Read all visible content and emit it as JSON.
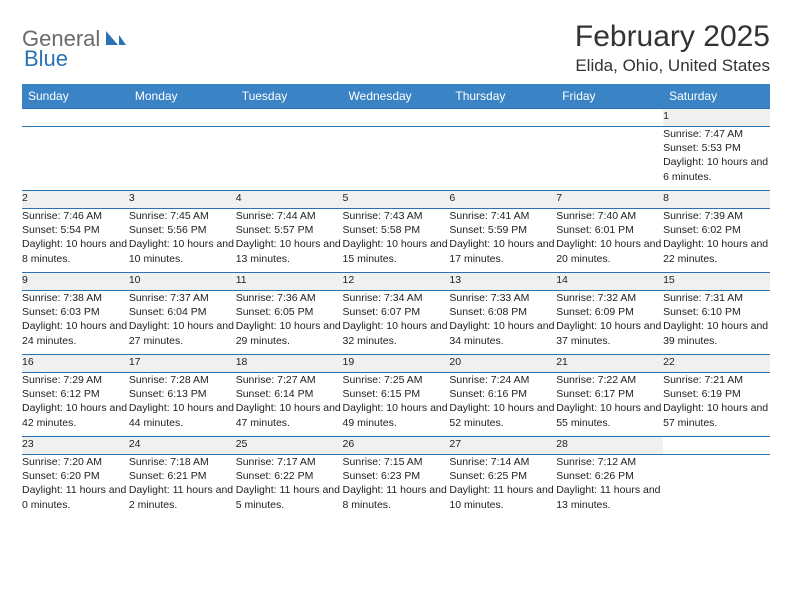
{
  "logo": {
    "part1": "General",
    "part2": "Blue"
  },
  "title": "February 2025",
  "location": "Elida, Ohio, United States",
  "colors": {
    "header_bg": "#3a83c4",
    "border": "#2a72b5",
    "daynum_bg": "#f0f0f0",
    "text": "#222222",
    "logo_gray": "#6b6b6b",
    "logo_blue": "#2a72b5"
  },
  "day_headers": [
    "Sunday",
    "Monday",
    "Tuesday",
    "Wednesday",
    "Thursday",
    "Friday",
    "Saturday"
  ],
  "weeks": [
    [
      {
        "n": "",
        "lines": []
      },
      {
        "n": "",
        "lines": []
      },
      {
        "n": "",
        "lines": []
      },
      {
        "n": "",
        "lines": []
      },
      {
        "n": "",
        "lines": []
      },
      {
        "n": "",
        "lines": []
      },
      {
        "n": "1",
        "lines": [
          "Sunrise: 7:47 AM",
          "Sunset: 5:53 PM",
          "Daylight: 10 hours and 6 minutes."
        ]
      }
    ],
    [
      {
        "n": "2",
        "lines": [
          "Sunrise: 7:46 AM",
          "Sunset: 5:54 PM",
          "Daylight: 10 hours and 8 minutes."
        ]
      },
      {
        "n": "3",
        "lines": [
          "Sunrise: 7:45 AM",
          "Sunset: 5:56 PM",
          "Daylight: 10 hours and 10 minutes."
        ]
      },
      {
        "n": "4",
        "lines": [
          "Sunrise: 7:44 AM",
          "Sunset: 5:57 PM",
          "Daylight: 10 hours and 13 minutes."
        ]
      },
      {
        "n": "5",
        "lines": [
          "Sunrise: 7:43 AM",
          "Sunset: 5:58 PM",
          "Daylight: 10 hours and 15 minutes."
        ]
      },
      {
        "n": "6",
        "lines": [
          "Sunrise: 7:41 AM",
          "Sunset: 5:59 PM",
          "Daylight: 10 hours and 17 minutes."
        ]
      },
      {
        "n": "7",
        "lines": [
          "Sunrise: 7:40 AM",
          "Sunset: 6:01 PM",
          "Daylight: 10 hours and 20 minutes."
        ]
      },
      {
        "n": "8",
        "lines": [
          "Sunrise: 7:39 AM",
          "Sunset: 6:02 PM",
          "Daylight: 10 hours and 22 minutes."
        ]
      }
    ],
    [
      {
        "n": "9",
        "lines": [
          "Sunrise: 7:38 AM",
          "Sunset: 6:03 PM",
          "Daylight: 10 hours and 24 minutes."
        ]
      },
      {
        "n": "10",
        "lines": [
          "Sunrise: 7:37 AM",
          "Sunset: 6:04 PM",
          "Daylight: 10 hours and 27 minutes."
        ]
      },
      {
        "n": "11",
        "lines": [
          "Sunrise: 7:36 AM",
          "Sunset: 6:05 PM",
          "Daylight: 10 hours and 29 minutes."
        ]
      },
      {
        "n": "12",
        "lines": [
          "Sunrise: 7:34 AM",
          "Sunset: 6:07 PM",
          "Daylight: 10 hours and 32 minutes."
        ]
      },
      {
        "n": "13",
        "lines": [
          "Sunrise: 7:33 AM",
          "Sunset: 6:08 PM",
          "Daylight: 10 hours and 34 minutes."
        ]
      },
      {
        "n": "14",
        "lines": [
          "Sunrise: 7:32 AM",
          "Sunset: 6:09 PM",
          "Daylight: 10 hours and 37 minutes."
        ]
      },
      {
        "n": "15",
        "lines": [
          "Sunrise: 7:31 AM",
          "Sunset: 6:10 PM",
          "Daylight: 10 hours and 39 minutes."
        ]
      }
    ],
    [
      {
        "n": "16",
        "lines": [
          "Sunrise: 7:29 AM",
          "Sunset: 6:12 PM",
          "Daylight: 10 hours and 42 minutes."
        ]
      },
      {
        "n": "17",
        "lines": [
          "Sunrise: 7:28 AM",
          "Sunset: 6:13 PM",
          "Daylight: 10 hours and 44 minutes."
        ]
      },
      {
        "n": "18",
        "lines": [
          "Sunrise: 7:27 AM",
          "Sunset: 6:14 PM",
          "Daylight: 10 hours and 47 minutes."
        ]
      },
      {
        "n": "19",
        "lines": [
          "Sunrise: 7:25 AM",
          "Sunset: 6:15 PM",
          "Daylight: 10 hours and 49 minutes."
        ]
      },
      {
        "n": "20",
        "lines": [
          "Sunrise: 7:24 AM",
          "Sunset: 6:16 PM",
          "Daylight: 10 hours and 52 minutes."
        ]
      },
      {
        "n": "21",
        "lines": [
          "Sunrise: 7:22 AM",
          "Sunset: 6:17 PM",
          "Daylight: 10 hours and 55 minutes."
        ]
      },
      {
        "n": "22",
        "lines": [
          "Sunrise: 7:21 AM",
          "Sunset: 6:19 PM",
          "Daylight: 10 hours and 57 minutes."
        ]
      }
    ],
    [
      {
        "n": "23",
        "lines": [
          "Sunrise: 7:20 AM",
          "Sunset: 6:20 PM",
          "Daylight: 11 hours and 0 minutes."
        ]
      },
      {
        "n": "24",
        "lines": [
          "Sunrise: 7:18 AM",
          "Sunset: 6:21 PM",
          "Daylight: 11 hours and 2 minutes."
        ]
      },
      {
        "n": "25",
        "lines": [
          "Sunrise: 7:17 AM",
          "Sunset: 6:22 PM",
          "Daylight: 11 hours and 5 minutes."
        ]
      },
      {
        "n": "26",
        "lines": [
          "Sunrise: 7:15 AM",
          "Sunset: 6:23 PM",
          "Daylight: 11 hours and 8 minutes."
        ]
      },
      {
        "n": "27",
        "lines": [
          "Sunrise: 7:14 AM",
          "Sunset: 6:25 PM",
          "Daylight: 11 hours and 10 minutes."
        ]
      },
      {
        "n": "28",
        "lines": [
          "Sunrise: 7:12 AM",
          "Sunset: 6:26 PM",
          "Daylight: 11 hours and 13 minutes."
        ]
      },
      {
        "n": "",
        "lines": []
      }
    ]
  ]
}
